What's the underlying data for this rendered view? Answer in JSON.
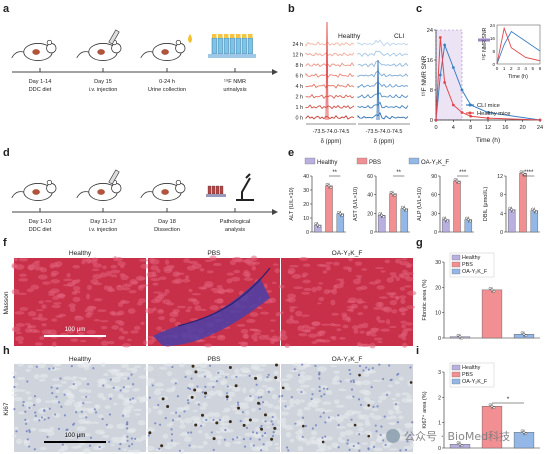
{
  "panels": {
    "a": "a",
    "b": "b",
    "c": "c",
    "d": "d",
    "e": "e",
    "f": "f",
    "g": "g",
    "h": "h",
    "i": "i"
  },
  "a": {
    "steps": [
      {
        "line1": "Day 1-14",
        "line2": "DDC diet"
      },
      {
        "line1": "Day 15",
        "line2": "i.v. injection"
      },
      {
        "line1": "0-24 h",
        "line2": "Urine collection"
      },
      {
        "line1": "¹⁹F NMR",
        "line2": "urinalysis"
      }
    ]
  },
  "b": {
    "healthy_label": "Healthy",
    "cli_label": "CLI",
    "times": [
      "24 h",
      "12 h",
      "8 h",
      "6 h",
      "4 h",
      "2 h",
      "1 h",
      "0 h"
    ],
    "ticks": "-73.5-74.0-74.5",
    "xlabel": "δ (ppm)",
    "colors": [
      "#f4b6a5",
      "#f2a698",
      "#ee9485",
      "#ea8677",
      "#e47567",
      "#dd6557",
      "#d34f44",
      "#c73a32"
    ],
    "cli_colors": [
      "#bcd4ea",
      "#a7c6e4",
      "#92b7dd",
      "#7ea9d6",
      "#6a9bce",
      "#568dc6",
      "#427fbd",
      "#2f70b3"
    ]
  },
  "c": {
    "ylabel": "¹⁹F NMR SNR",
    "xlabel": "Time (h)",
    "yticks": [
      "0",
      "8",
      "16",
      "24"
    ],
    "xticks": [
      "0",
      "4",
      "8",
      "12",
      "16",
      "20",
      "24"
    ],
    "inset_ylabel": "¹⁹F NMR SNR",
    "inset_xlabel": "Time (h)",
    "inset_yticks": [
      "0",
      "8",
      "16",
      "24"
    ],
    "inset_xticks": [
      "0",
      "1",
      "2",
      "3",
      "4",
      "5",
      "6"
    ],
    "legend": [
      {
        "name": "CLI mice",
        "color": "#3b7fc4"
      },
      {
        "name": "Healthy mice",
        "color": "#e0474c"
      }
    ],
    "chart_data": {
      "type": "line",
      "x": [
        0,
        1,
        2,
        4,
        6,
        8,
        12,
        24
      ],
      "series": [
        {
          "name": "CLI mice",
          "values": [
            0,
            12,
            20,
            14,
            8,
            4,
            2,
            0
          ]
        },
        {
          "name": "Healthy mice",
          "values": [
            0,
            22,
            10,
            4,
            2,
            1,
            0.5,
            0
          ]
        }
      ]
    }
  },
  "d": {
    "steps": [
      {
        "line1": "Day 1-10",
        "line2": "DDC diet"
      },
      {
        "line1": "Day 11-17",
        "line2": "i.v. injection"
      },
      {
        "line1": "Day 18",
        "line2": "Dissection"
      },
      {
        "line1": "Pathological",
        "line2": "analysis"
      }
    ]
  },
  "e": {
    "legend": [
      {
        "name": "Healthy",
        "color": "#b9b0df"
      },
      {
        "name": "PBS",
        "color": "#f28f92"
      },
      {
        "name": "OA-Y₂K_F",
        "color": "#93b7e6"
      }
    ],
    "charts": [
      {
        "ylabel": "ALT (U/L×10)",
        "yticks": [
          "0",
          "10",
          "20",
          "30",
          "40"
        ],
        "ymax": 40,
        "values": [
          5,
          33,
          13
        ],
        "sig": "**"
      },
      {
        "ylabel": "AST (U/L×10)",
        "yticks": [
          "0",
          "20",
          "40",
          "60"
        ],
        "ymax": 60,
        "values": [
          18,
          41,
          25
        ],
        "sig": "**"
      },
      {
        "ylabel": "ALP (U/L×10)",
        "yticks": [
          "0",
          "30",
          "60",
          "90"
        ],
        "ymax": 90,
        "values": [
          20,
          82,
          20
        ],
        "sig": "***"
      },
      {
        "ylabel": "DBIL (μmol/L)",
        "yticks": [
          "0",
          "4",
          "8",
          "12"
        ],
        "ymax": 12,
        "values": [
          4.8,
          12.6,
          4.6
        ],
        "sig": "****"
      }
    ]
  },
  "f": {
    "row_label": "Masson",
    "titles": [
      "Healthy",
      "PBS",
      "OA-Y₂K_F"
    ],
    "scale": "100 μm"
  },
  "g": {
    "ylabel": "Fibrotic area (%)",
    "yticks": [
      "0",
      "10",
      "20",
      "30"
    ],
    "ymax": 30,
    "values": [
      0.5,
      19,
      1.5
    ],
    "legend": [
      {
        "name": "Healthy",
        "color": "#b9b0df"
      },
      {
        "name": "PBS",
        "color": "#f28f92"
      },
      {
        "name": "OA-Y₂K_F",
        "color": "#93b7e6"
      }
    ]
  },
  "h": {
    "row_label": "Ki67",
    "titles": [
      "Healthy",
      "PBS",
      "OA-Y₂K_F"
    ],
    "scale": "100 μm"
  },
  "i": {
    "ylabel": "Ki67⁺ area (%)",
    "yticks": [
      "0",
      "1",
      "2",
      "3"
    ],
    "ymax": 3,
    "values": [
      0.15,
      1.65,
      0.62
    ],
    "sig": "*",
    "legend": [
      {
        "name": "Healthy",
        "color": "#b9b0df"
      },
      {
        "name": "PBS",
        "color": "#f28f92"
      },
      {
        "name": "OA-Y₂K_F",
        "color": "#93b7e6"
      }
    ]
  },
  "watermark": {
    "text": "公众号 · BioMed科技"
  }
}
